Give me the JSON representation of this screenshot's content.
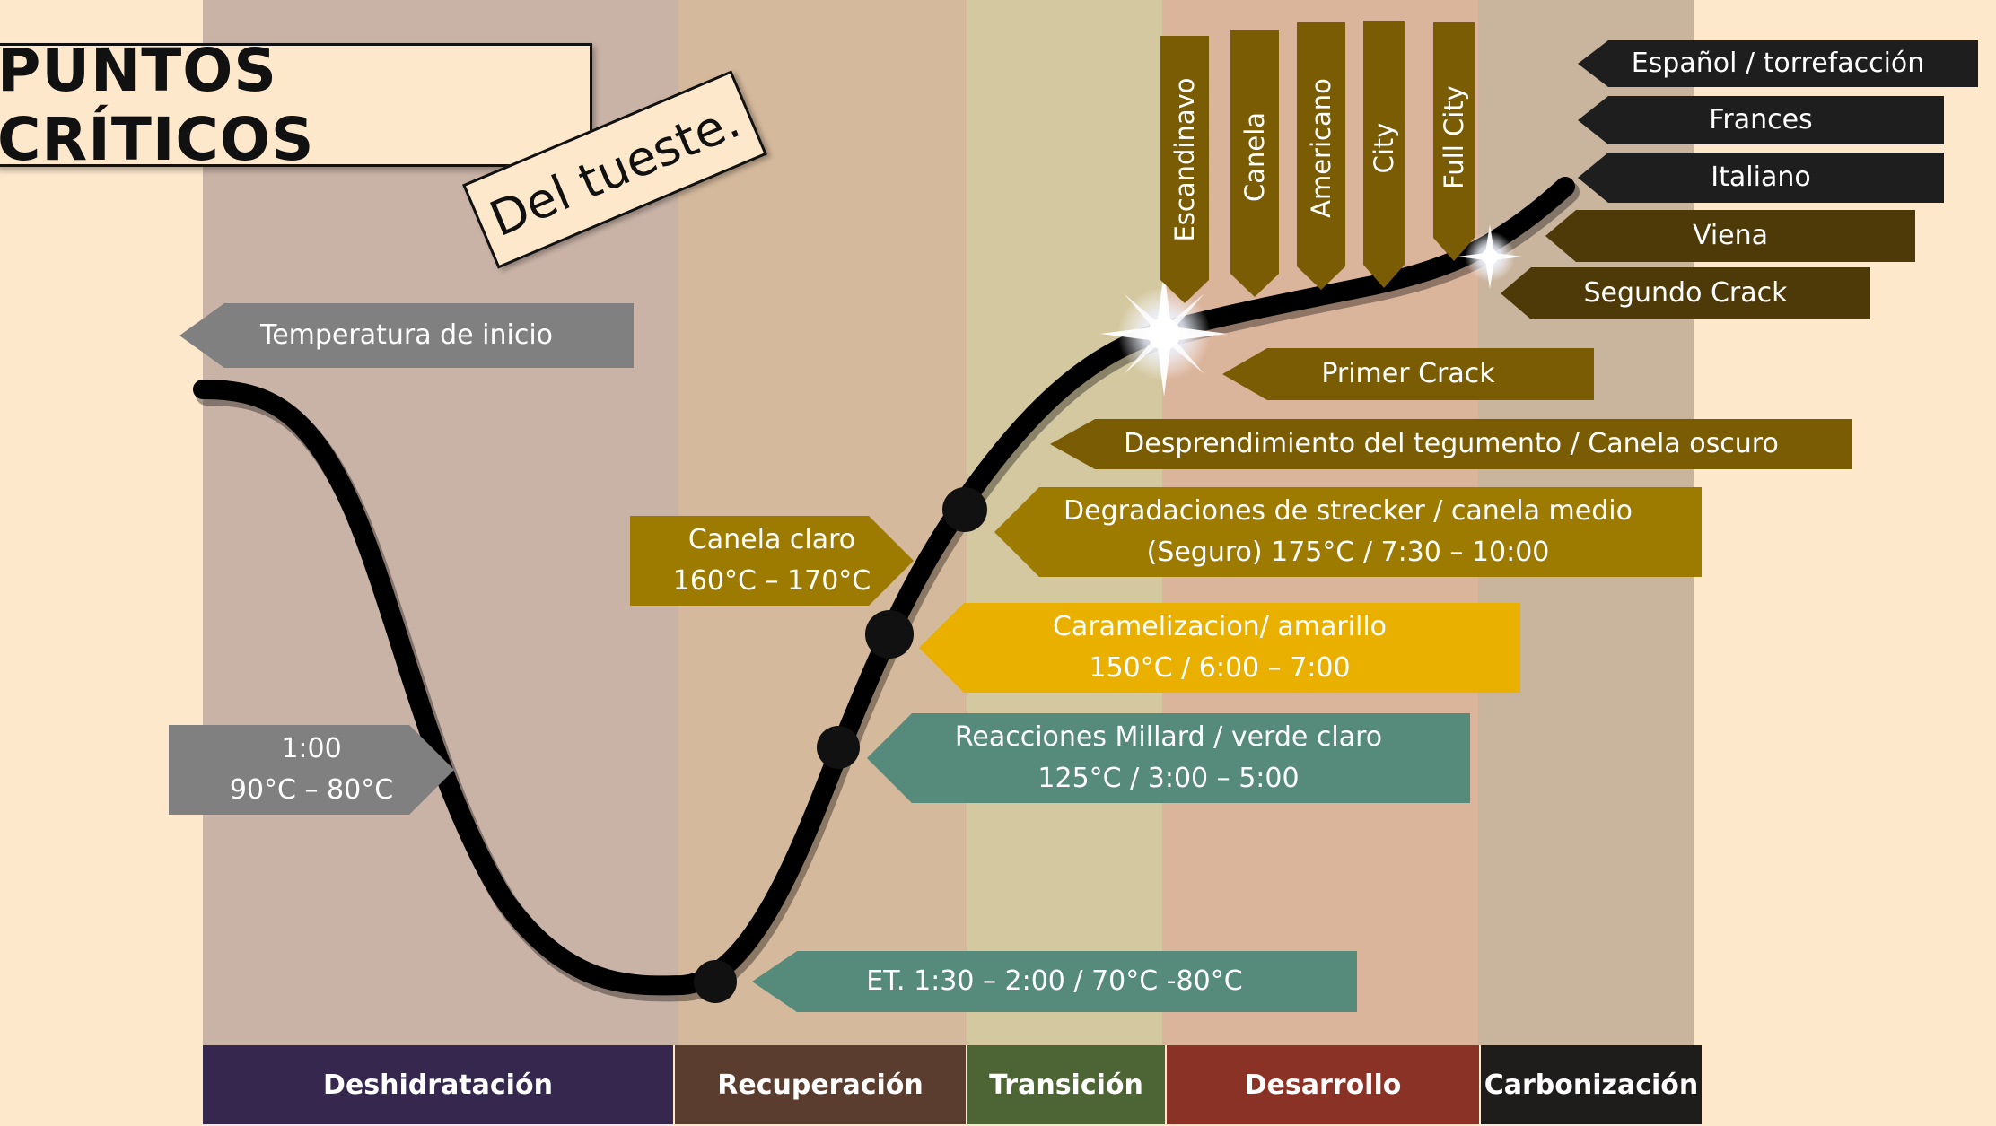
{
  "title": "PUNTOS CRÍTICOS",
  "subtitle": "Del tueste.",
  "phases": [
    {
      "label": "Deshidratación",
      "color": "#35274e"
    },
    {
      "label": "Recuperación",
      "color": "#5b3d2f"
    },
    {
      "label": "Transición",
      "color": "#4d6435"
    },
    {
      "label": "Desarrollo",
      "color": "#8a3226"
    },
    {
      "label": "Carbonización",
      "color": "#1e1d1c"
    }
  ],
  "colors": {
    "page_background": "#fde8cc",
    "band_dehydration": "#c9b2a6",
    "band_recovery": "#d5b99c",
    "band_transition": "#d4c8a0",
    "band_development": "#dbb49c",
    "band_carbonization": "#c9b49e",
    "curve": "#000000"
  },
  "annotations": {
    "temp_inicio": {
      "lines": [
        "Temperatura de inicio"
      ],
      "color": "#808080"
    },
    "minuto_uno": {
      "lines": [
        "1:00",
        "90°C – 80°C"
      ],
      "color": "#808080"
    },
    "turning_point": {
      "lines": [
        "ET. 1:30 – 2:00 / 70°C -80°C"
      ],
      "color": "#568a7b"
    },
    "maillard": {
      "lines": [
        "Reacciones Millard / verde claro",
        "125°C / 3:00 – 5:00"
      ],
      "color": "#568a7b"
    },
    "caramelizacion": {
      "lines": [
        "Caramelizacion/ amarillo",
        "150°C / 6:00 – 7:00"
      ],
      "color": "#e9b000"
    },
    "canela_claro": {
      "lines": [
        "Canela claro",
        "160°C – 170°C"
      ],
      "color": "#9d7a00"
    },
    "strecker": {
      "lines": [
        "Degradaciones de strecker / canela medio",
        "(Seguro) 175°C / 7:30 – 10:00"
      ],
      "color": "#9d7a00"
    },
    "tegumento": {
      "lines": [
        "Desprendimiento del tegumento / Canela oscuro"
      ],
      "color": "#7a5c04"
    },
    "primer_crack": {
      "lines": [
        "Primer Crack"
      ],
      "color": "#7a5c04"
    },
    "segundo_crack": {
      "lines": [
        "Segundo Crack"
      ],
      "color": "#4e3a08"
    },
    "viena": {
      "lines": [
        "Viena"
      ],
      "color": "#4e3a08"
    },
    "italiano": {
      "lines": [
        "Italiano"
      ],
      "color": "#1e1e1e"
    },
    "frances": {
      "lines": [
        "Frances"
      ],
      "color": "#1e1e1e"
    },
    "espanol": {
      "lines": [
        "Español / torrefacción"
      ],
      "color": "#1e1e1e"
    }
  },
  "roast_levels": [
    {
      "label": "Escandinavo",
      "color": "#7a5c04"
    },
    {
      "label": "Canela",
      "color": "#7a5c04"
    },
    {
      "label": "Americano",
      "color": "#7a5c04"
    },
    {
      "label": "City",
      "color": "#7a5c04"
    },
    {
      "label": "Full City",
      "color": "#7a5c04"
    }
  ]
}
